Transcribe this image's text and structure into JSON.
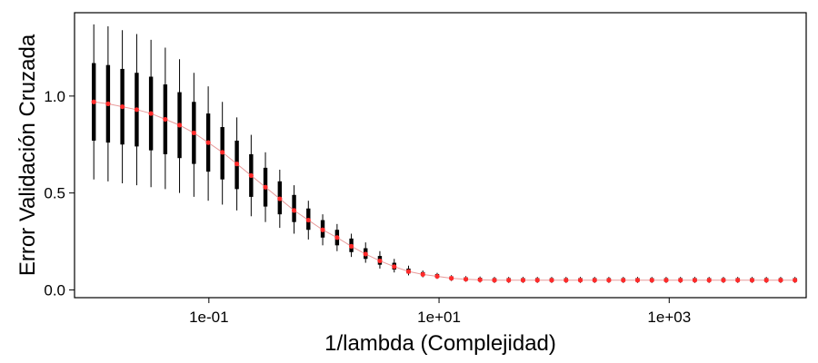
{
  "chart_data": {
    "type": "scatter",
    "xlabel": "1/lambda  (Complejidad)",
    "ylabel": "Error Validación Cruzada",
    "x_scale": "log10",
    "xlim": [
      0.0068,
      15500
    ],
    "ylim": [
      -0.04,
      1.43
    ],
    "grid": false,
    "legend": "none",
    "x_ticks": [
      {
        "value": 0.1,
        "label": "1e-01"
      },
      {
        "value": 10,
        "label": "1e+01"
      },
      {
        "value": 1000,
        "label": "1e+03"
      }
    ],
    "y_ticks": [
      {
        "value": 0.0,
        "label": "0.0"
      },
      {
        "value": 0.5,
        "label": "0.5"
      },
      {
        "value": 1.0,
        "label": "1.0"
      }
    ],
    "colors": {
      "mean_point": "#ff2a2a",
      "mean_line": "#e89a9a",
      "whisker": "#000000",
      "box": "#000000",
      "frame": "#000000"
    },
    "series": [
      {
        "x": [
          0.01,
          0.0133,
          0.0177,
          0.0236,
          0.0314,
          0.0418,
          0.0556,
          0.0741,
          0.0987,
          0.131,
          0.175,
          0.233,
          0.31,
          0.413,
          0.55,
          0.732,
          0.975,
          1.3,
          1.73,
          2.3,
          3.06,
          4.08,
          5.43,
          7.23,
          9.63,
          12.8,
          17.1,
          22.7,
          30.3,
          40.3,
          53.7,
          71.5,
          95.2,
          127,
          169,
          225,
          299,
          399,
          531,
          707,
          941,
          1253,
          1669,
          2222,
          2959,
          3940,
          5247,
          6986,
          9303,
          12388
        ],
        "mean": [
          0.97,
          0.96,
          0.945,
          0.93,
          0.91,
          0.88,
          0.85,
          0.81,
          0.76,
          0.71,
          0.65,
          0.59,
          0.53,
          0.47,
          0.41,
          0.36,
          0.31,
          0.27,
          0.225,
          0.185,
          0.15,
          0.12,
          0.095,
          0.08,
          0.07,
          0.06,
          0.055,
          0.052,
          0.05,
          0.05,
          0.05,
          0.05,
          0.05,
          0.05,
          0.05,
          0.05,
          0.05,
          0.05,
          0.05,
          0.05,
          0.05,
          0.05,
          0.05,
          0.05,
          0.05,
          0.05,
          0.05,
          0.05,
          0.05,
          0.05
        ],
        "box_low": [
          0.77,
          0.76,
          0.75,
          0.74,
          0.72,
          0.7,
          0.68,
          0.65,
          0.61,
          0.57,
          0.52,
          0.48,
          0.43,
          0.39,
          0.35,
          0.31,
          0.27,
          0.23,
          0.195,
          0.16,
          0.13,
          0.105,
          0.085,
          0.072,
          0.063,
          0.052,
          0.047,
          0.044,
          0.042,
          0.042,
          0.042,
          0.042,
          0.042,
          0.042,
          0.042,
          0.042,
          0.042,
          0.042,
          0.042,
          0.042,
          0.042,
          0.042,
          0.042,
          0.042,
          0.042,
          0.042,
          0.042,
          0.042,
          0.042,
          0.042
        ],
        "box_high": [
          1.17,
          1.16,
          1.14,
          1.12,
          1.1,
          1.06,
          1.02,
          0.97,
          0.91,
          0.84,
          0.77,
          0.7,
          0.63,
          0.56,
          0.49,
          0.42,
          0.36,
          0.31,
          0.265,
          0.215,
          0.175,
          0.14,
          0.11,
          0.092,
          0.082,
          0.07,
          0.065,
          0.063,
          0.061,
          0.061,
          0.061,
          0.061,
          0.061,
          0.061,
          0.061,
          0.061,
          0.061,
          0.061,
          0.061,
          0.061,
          0.061,
          0.061,
          0.061,
          0.061,
          0.061,
          0.061,
          0.061,
          0.061,
          0.061,
          0.061
        ],
        "whisker_low": [
          0.57,
          0.56,
          0.55,
          0.54,
          0.53,
          0.52,
          0.5,
          0.48,
          0.46,
          0.44,
          0.41,
          0.38,
          0.35,
          0.32,
          0.29,
          0.26,
          0.23,
          0.2,
          0.17,
          0.14,
          0.11,
          0.09,
          0.075,
          0.065,
          0.057,
          0.046,
          0.042,
          0.038,
          0.036,
          0.036,
          0.036,
          0.036,
          0.036,
          0.036,
          0.036,
          0.036,
          0.036,
          0.036,
          0.036,
          0.036,
          0.036,
          0.036,
          0.036,
          0.036,
          0.036,
          0.036,
          0.036,
          0.036,
          0.036,
          0.036
        ],
        "whisker_high": [
          1.37,
          1.36,
          1.34,
          1.32,
          1.29,
          1.25,
          1.19,
          1.12,
          1.05,
          0.97,
          0.89,
          0.8,
          0.71,
          0.62,
          0.54,
          0.46,
          0.39,
          0.34,
          0.29,
          0.245,
          0.2,
          0.16,
          0.125,
          0.1,
          0.088,
          0.076,
          0.071,
          0.069,
          0.067,
          0.067,
          0.067,
          0.067,
          0.067,
          0.067,
          0.067,
          0.067,
          0.067,
          0.067,
          0.067,
          0.067,
          0.067,
          0.067,
          0.067,
          0.067,
          0.067,
          0.067,
          0.067,
          0.067,
          0.067,
          0.067
        ]
      }
    ]
  }
}
